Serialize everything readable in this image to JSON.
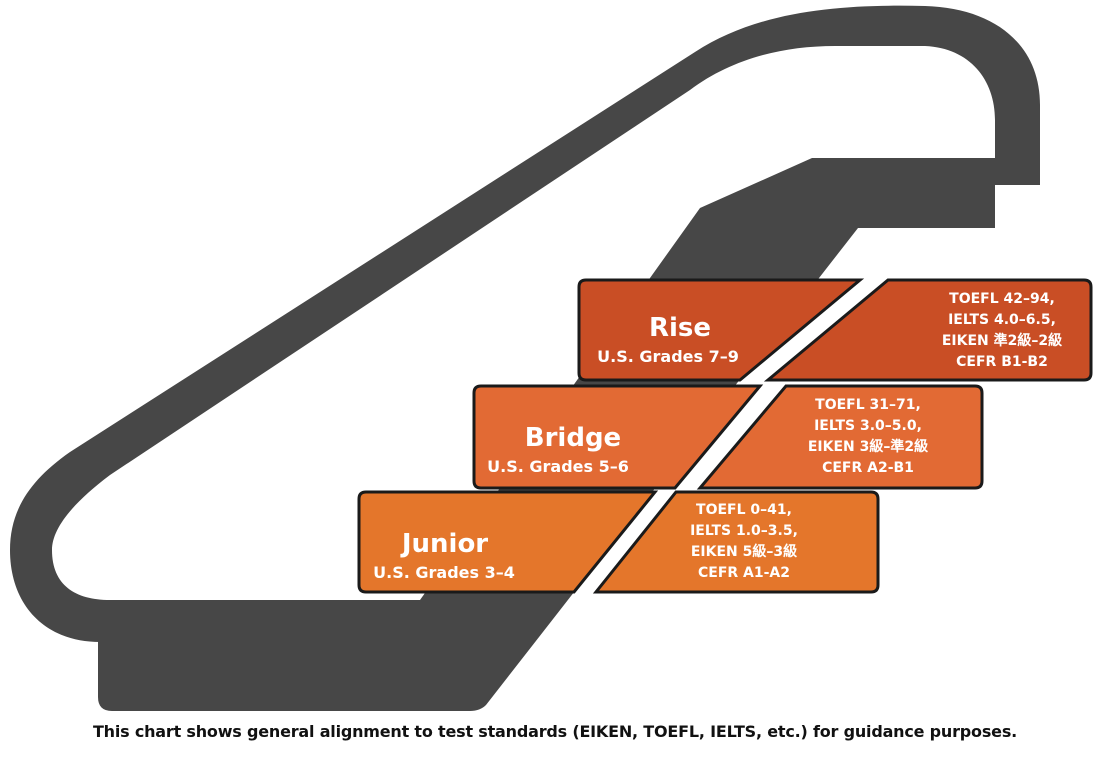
{
  "steps": [
    {
      "title": "Junior",
      "grades": "U.S. Grades 3–4",
      "scores": [
        "TOEFL 0–41,",
        "IELTS 1.0–3.5,",
        "EIKEN 5級–3級",
        "CEFR A1-A2"
      ],
      "color": "#E4762B"
    },
    {
      "title": "Bridge",
      "grades": "U.S. Grades 5–6",
      "scores": [
        "TOEFL 31–71,",
        "IELTS 3.0–5.0,",
        "EIKEN 3級–準2級",
        "CEFR A2-B1"
      ],
      "color": "#E26A34"
    },
    {
      "title": "Rise",
      "grades": "U.S. Grades 7–9",
      "scores": [
        "TOEFL 42–94,",
        "IELTS 4.0–6.5,",
        "EIKEN 準2級–2級",
        "CEFR B1-B2"
      ],
      "color": "#C94E25"
    }
  ],
  "caption": "This chart shows general alignment to test standards (EIKEN, TOEFL, IELTS, etc.) for guidance purposes.",
  "colors": {
    "escalator": "#474747",
    "outline": "#1a1a1a",
    "background": "#ffffff"
  }
}
